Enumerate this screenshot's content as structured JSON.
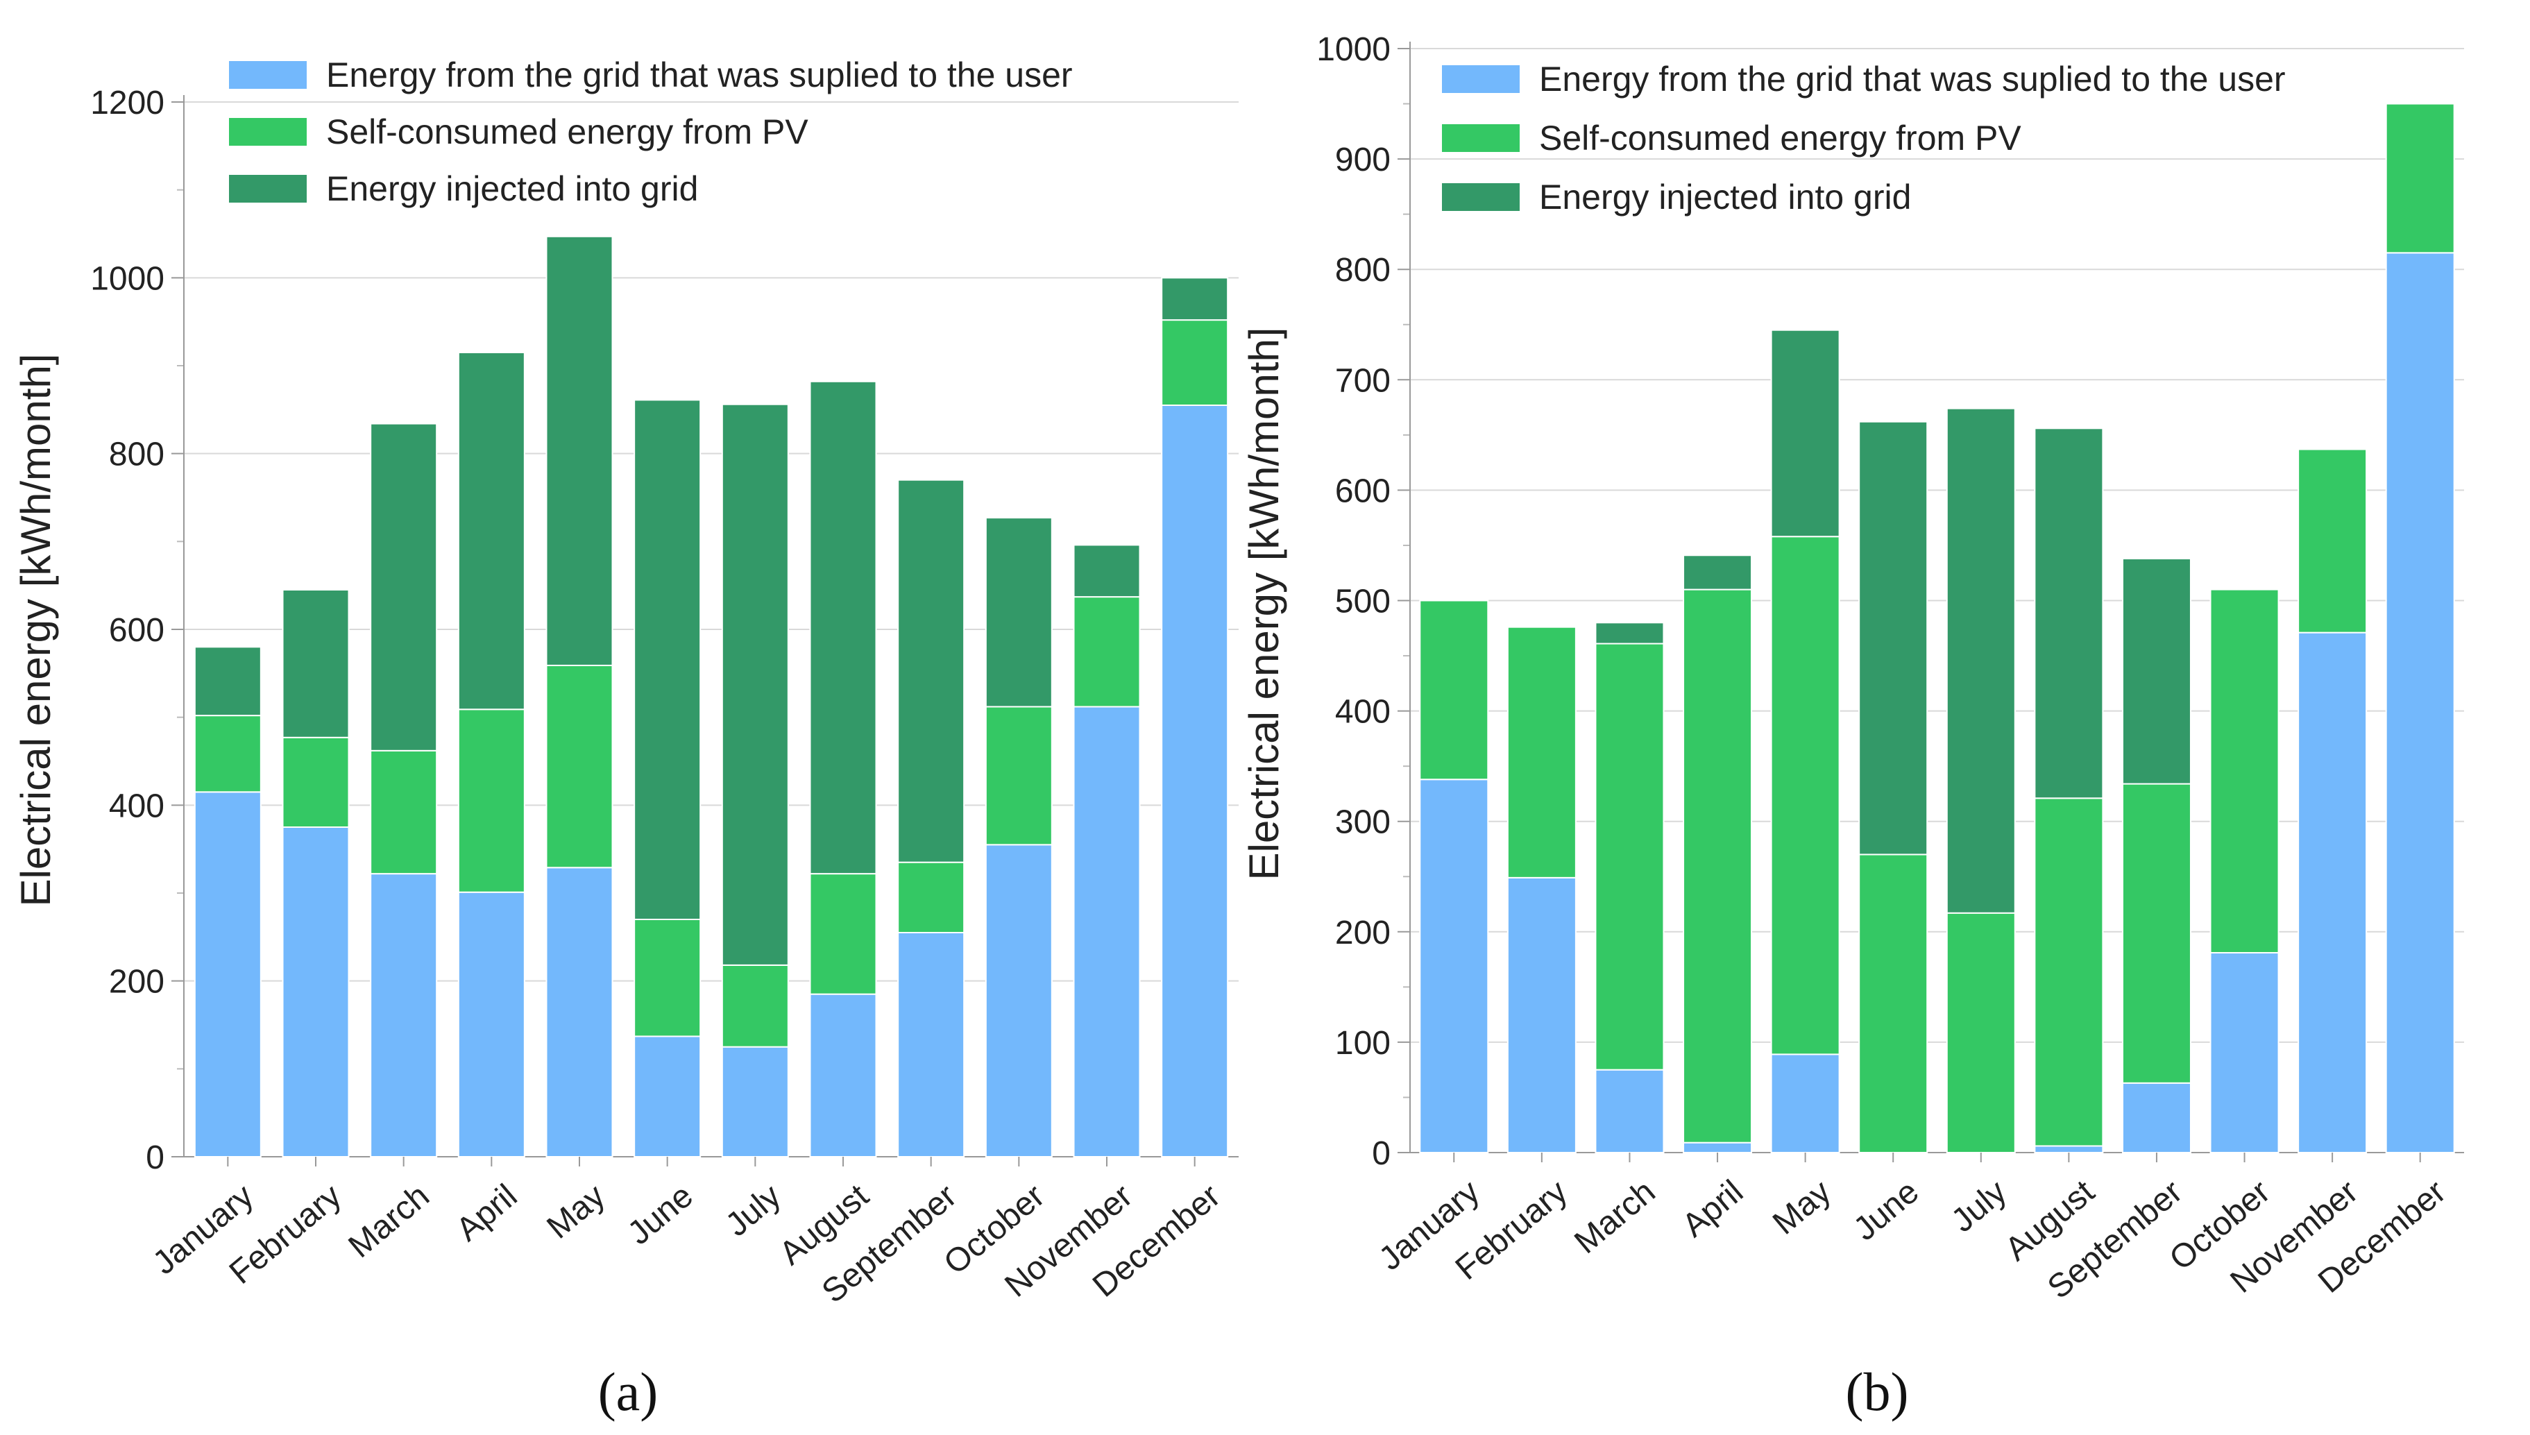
{
  "chart_data": [
    {
      "type": "bar",
      "stacked": true,
      "panel_label": "(a)",
      "title": "",
      "xlabel": "",
      "ylabel": "Electrical energy [kWh/month]",
      "ylim": [
        0,
        1200
      ],
      "yticks": [
        0,
        200,
        400,
        600,
        800,
        1000,
        1200
      ],
      "grid": true,
      "legend_position": "top-center",
      "categories": [
        "January",
        "February",
        "March",
        "April",
        "May",
        "June",
        "July",
        "August",
        "September",
        "October",
        "November",
        "December"
      ],
      "series": [
        {
          "name": "Energy from the grid that was suplied to the user",
          "color": "#73b8fc",
          "values": [
            415,
            375,
            322,
            301,
            329,
            137,
            125,
            185,
            255,
            355,
            512,
            855
          ]
        },
        {
          "name": "Self-consumed energy from PV",
          "color": "#34c864",
          "values": [
            87,
            102,
            140,
            208,
            230,
            133,
            93,
            137,
            80,
            157,
            125,
            97
          ]
        },
        {
          "name": "Energy injected into grid",
          "color": "#339968",
          "values": [
            78,
            168,
            372,
            406,
            488,
            591,
            638,
            560,
            435,
            215,
            59,
            48
          ]
        }
      ]
    },
    {
      "type": "bar",
      "stacked": true,
      "panel_label": "(b)",
      "title": "",
      "xlabel": "",
      "ylabel": "Electrical energy [kWh/month]",
      "ylim": [
        0,
        1000
      ],
      "yticks": [
        0,
        100,
        200,
        300,
        400,
        500,
        600,
        700,
        800,
        900,
        1000
      ],
      "grid": true,
      "legend_position": "top-center",
      "categories": [
        "January",
        "February",
        "March",
        "April",
        "May",
        "June",
        "July",
        "August",
        "September",
        "October",
        "November",
        "December"
      ],
      "series": [
        {
          "name": "Energy from the grid that was suplied to the user",
          "color": "#73b8fc",
          "values": [
            338,
            249,
            75,
            9,
            89,
            0,
            0,
            6,
            63,
            181,
            471,
            815
          ]
        },
        {
          "name": "Self-consumed energy from PV",
          "color": "#34c864",
          "values": [
            162,
            227,
            386,
            501,
            469,
            270,
            217,
            315,
            271,
            329,
            166,
            135
          ]
        },
        {
          "name": "Energy injected into grid",
          "color": "#339968",
          "values": [
            0,
            0,
            19,
            31,
            187,
            392,
            457,
            335,
            204,
            0,
            0,
            0
          ]
        }
      ]
    }
  ]
}
